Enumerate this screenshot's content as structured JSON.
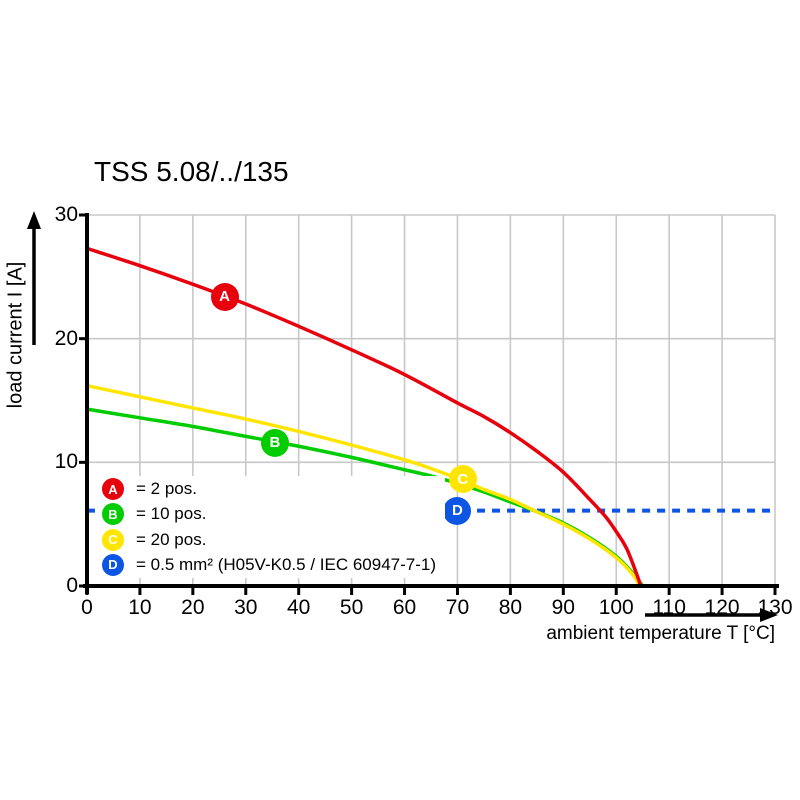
{
  "title": "TSS 5.08/../135",
  "colors": {
    "axis": "#000000",
    "grid": "#c8c8c8",
    "series_a": "#e8000d",
    "series_b": "#00cc00",
    "series_c": "#ffe500",
    "series_d": "#0d55e5"
  },
  "chart_data": {
    "type": "line",
    "title": "TSS 5.08/../135",
    "xlabel": "ambient temperature T [°C]",
    "ylabel": "load current I [A]",
    "xlim": [
      0,
      130
    ],
    "ylim": [
      0,
      30
    ],
    "x_ticks": [
      0,
      10,
      20,
      30,
      40,
      50,
      60,
      70,
      80,
      90,
      100,
      110,
      120,
      130
    ],
    "y_ticks": [
      0,
      10,
      20,
      30
    ],
    "grid": true,
    "series": [
      {
        "id": "A",
        "name": "2 pos.",
        "color": "#e8000d",
        "style": "solid",
        "marker_label": "A",
        "marker_at": [
          26,
          23.4
        ],
        "points": [
          [
            0,
            27.3
          ],
          [
            10,
            25.9
          ],
          [
            20,
            24.4
          ],
          [
            30,
            22.8
          ],
          [
            40,
            21.0
          ],
          [
            50,
            19.1
          ],
          [
            60,
            17.1
          ],
          [
            70,
            14.8
          ],
          [
            75,
            13.7
          ],
          [
            80,
            12.4
          ],
          [
            85,
            10.9
          ],
          [
            90,
            9.2
          ],
          [
            95,
            7.0
          ],
          [
            98,
            5.6
          ],
          [
            100,
            4.4
          ],
          [
            102,
            3.0
          ],
          [
            104,
            0.8
          ],
          [
            104.6,
            0
          ]
        ]
      },
      {
        "id": "B",
        "name": "10 pos.",
        "color": "#00cc00",
        "style": "solid",
        "marker_label": "B",
        "marker_at": [
          35.5,
          11.6
        ],
        "points": [
          [
            0,
            14.3
          ],
          [
            10,
            13.6
          ],
          [
            20,
            12.9
          ],
          [
            30,
            12.1
          ],
          [
            40,
            11.3
          ],
          [
            50,
            10.4
          ],
          [
            60,
            9.4
          ],
          [
            65,
            8.9
          ],
          [
            70,
            8.3
          ],
          [
            75,
            7.6
          ],
          [
            80,
            6.8
          ],
          [
            85,
            6.0
          ],
          [
            90,
            5.1
          ],
          [
            95,
            3.9
          ],
          [
            100,
            2.4
          ],
          [
            103,
            1.1
          ],
          [
            105,
            0
          ]
        ]
      },
      {
        "id": "C",
        "name": "20 pos.",
        "color": "#ffe500",
        "style": "solid",
        "marker_label": "C",
        "marker_at": [
          71,
          8.65
        ],
        "points": [
          [
            0,
            16.2
          ],
          [
            10,
            15.3
          ],
          [
            20,
            14.4
          ],
          [
            30,
            13.5
          ],
          [
            40,
            12.5
          ],
          [
            50,
            11.4
          ],
          [
            60,
            10.2
          ],
          [
            65,
            9.5
          ],
          [
            70,
            8.7
          ],
          [
            75,
            7.8
          ],
          [
            80,
            7.0
          ],
          [
            85,
            6.0
          ],
          [
            90,
            5.0
          ],
          [
            95,
            3.8
          ],
          [
            100,
            2.3
          ],
          [
            103,
            1.0
          ],
          [
            104.5,
            0
          ]
        ]
      },
      {
        "id": "D",
        "name": "0.5 mm² (H05V-K0.5 / IEC 60947-7-1)",
        "color": "#0d55e5",
        "style": "dashed",
        "marker_label": "D",
        "marker_at": [
          70,
          6.1
        ],
        "points": [
          [
            0,
            6.1
          ],
          [
            130,
            6.1
          ]
        ]
      }
    ],
    "legend_position": "inside-bottom-left",
    "legend": [
      {
        "badge": "A",
        "color": "#e8000d",
        "label": "= 2 pos."
      },
      {
        "badge": "B",
        "color": "#00cc00",
        "label": "= 10 pos."
      },
      {
        "badge": "C",
        "color": "#ffe500",
        "label": "= 20 pos."
      },
      {
        "badge": "D",
        "color": "#0d55e5",
        "label": "= 0.5 mm² (H05V-K0.5 / IEC 60947-7-1)"
      }
    ]
  }
}
